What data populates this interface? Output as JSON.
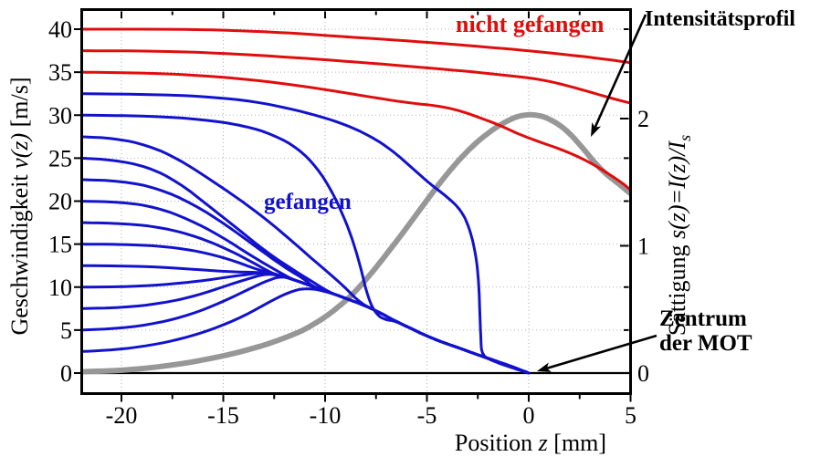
{
  "chart_data": {
    "type": "line",
    "title": "",
    "xlabel": "Position z [mm]",
    "ylabel_left": "Geschwindigkeit v(z) [m/s]",
    "ylabel_right": "Sättigung s(z)=I(z)/I_s",
    "xlim": [
      -22,
      5
    ],
    "ylim_left": [
      -2.3,
      42.1
    ],
    "ylim_right": [
      -0.16,
      2.85
    ],
    "grid": true,
    "colors": {
      "red": "#e00d0d",
      "blue": "#1212cd",
      "gray": "#979797",
      "grid": "#b3b3b3",
      "axis": "#000000"
    },
    "axes": {
      "x": {
        "label": {
          "prefix": "Position ",
          "variable": "z",
          "suffix": " [mm]"
        },
        "tick_values": [
          -20,
          -15,
          -10,
          -5,
          0,
          5
        ],
        "tick_labels": [
          "-20",
          "-15",
          "-10",
          "-5",
          "0",
          "5"
        ],
        "minor_tick_values": [
          -17.5,
          -12.5,
          -7.5,
          -2.5,
          2.5
        ]
      },
      "y_left": {
        "label": {
          "prefix": "Geschwindigkeit ",
          "variable": "v(z)",
          "suffix": " [m/s]"
        },
        "tick_values": [
          0,
          5,
          10,
          15,
          20,
          25,
          30,
          35,
          40
        ],
        "tick_labels": [
          "0",
          "5",
          "10",
          "15",
          "20",
          "25",
          "30",
          "35",
          "40"
        ]
      },
      "y_right": {
        "label": {
          "prefix": "Sättigung ",
          "variable": "s(z)=I(z)/I",
          "subscript": "s"
        },
        "tick_values": [
          0,
          1,
          2
        ],
        "tick_labels": [
          "0",
          "1",
          "2"
        ],
        "minor_tick_values_velocity_mirror": [
          5,
          10,
          20,
          25,
          35,
          40
        ]
      },
      "gridlines": {
        "x_values": [
          -20,
          -15,
          -10,
          -5,
          0
        ],
        "y_left_values": [
          5,
          10,
          15,
          20,
          25,
          30,
          35,
          40
        ]
      }
    },
    "annotations": {
      "nicht_gefangen": {
        "text": "nicht gefangen",
        "color": "#e00d0d"
      },
      "gefangen": {
        "text": "gefangen",
        "color": "#1212cd"
      },
      "intensitaetsprofil": {
        "text": "Intensitätsprofil",
        "color": "#000000"
      },
      "zentrum_der_mot": {
        "line1": "Zentrum",
        "line2": "der MOT",
        "color": "#000000"
      }
    },
    "capture_path_tail": [
      [
        -13,
        11.7
      ],
      [
        -12.2,
        11.35
      ],
      [
        -11.4,
        10.75
      ],
      [
        -10.6,
        10.05
      ],
      [
        -9.8,
        9.4
      ],
      [
        -9,
        8.7
      ],
      [
        -8.2,
        8.0
      ],
      [
        -7.4,
        7.15
      ],
      [
        -6.6,
        6.1
      ],
      [
        -5.8,
        5.2
      ],
      [
        -5,
        4.3
      ],
      [
        -4.2,
        3.55
      ],
      [
        -3.4,
        2.9
      ],
      [
        -2.6,
        2.2
      ],
      [
        -1.8,
        1.55
      ],
      [
        -1,
        0.9
      ],
      [
        -0.5,
        0.45
      ],
      [
        0,
        0
      ]
    ],
    "series": [
      {
        "name": "intensitaetsprofil",
        "label": "Intensitätsprofil",
        "axis": "right",
        "color_key": "gray",
        "width": 6,
        "points": [
          [
            -22,
            0.01
          ],
          [
            -20,
            0.02
          ],
          [
            -18,
            0.05
          ],
          [
            -16,
            0.1
          ],
          [
            -14,
            0.17
          ],
          [
            -12,
            0.27
          ],
          [
            -10.5,
            0.38
          ],
          [
            -9,
            0.56
          ],
          [
            -8,
            0.73
          ],
          [
            -7,
            0.93
          ],
          [
            -6,
            1.14
          ],
          [
            -5,
            1.36
          ],
          [
            -4,
            1.57
          ],
          [
            -3,
            1.75
          ],
          [
            -2,
            1.89
          ],
          [
            -1,
            1.99
          ],
          [
            -0.3,
            2.03
          ],
          [
            0.4,
            2.03
          ],
          [
            1,
            2.0
          ],
          [
            1.8,
            1.92
          ],
          [
            2.6,
            1.78
          ],
          [
            3.3,
            1.64
          ],
          [
            3.9,
            1.55
          ],
          [
            4.4,
            1.49
          ],
          [
            5,
            1.41
          ]
        ]
      },
      {
        "name": "gefangen_v0_2p5",
        "label": "gefangen",
        "axis": "left",
        "color_key": "blue",
        "width": 3,
        "v0": 2.5,
        "merge_z": -10.6,
        "points": [
          [
            -22,
            2.5
          ],
          [
            -20.3,
            2.7
          ],
          [
            -18.6,
            3.2
          ],
          [
            -17,
            4.0
          ],
          [
            -15.5,
            5.1
          ],
          [
            -14,
            6.6
          ],
          [
            -12.8,
            8.2
          ],
          [
            -11.8,
            9.4
          ],
          [
            -10.9,
            9.95
          ]
        ]
      },
      {
        "name": "gefangen_v0_5",
        "label": "gefangen",
        "axis": "left",
        "color_key": "blue",
        "width": 3,
        "v0": 5,
        "merge_z": -12,
        "points": [
          [
            -22,
            5
          ],
          [
            -20,
            5.2
          ],
          [
            -18.2,
            5.8
          ],
          [
            -16.6,
            6.8
          ],
          [
            -15.1,
            8.2
          ],
          [
            -13.8,
            9.7
          ],
          [
            -12.8,
            10.8
          ],
          [
            -12.1,
            11.3
          ]
        ]
      },
      {
        "name": "gefangen_v0_7p5",
        "label": "gefangen",
        "axis": "left",
        "color_key": "blue",
        "width": 3,
        "v0": 7.5,
        "merge_z": -12.8,
        "points": [
          [
            -22,
            7.5
          ],
          [
            -20,
            7.6
          ],
          [
            -18,
            8.1
          ],
          [
            -16.3,
            9.0
          ],
          [
            -14.8,
            10.2
          ],
          [
            -13.6,
            11.1
          ],
          [
            -12.9,
            11.55
          ]
        ]
      },
      {
        "name": "gefangen_v0_10",
        "label": "gefangen",
        "axis": "left",
        "color_key": "blue",
        "width": 3,
        "v0": 10,
        "merge_z": -13.1,
        "points": [
          [
            -22,
            10
          ],
          [
            -19.5,
            10.05
          ],
          [
            -17.5,
            10.35
          ],
          [
            -15.8,
            10.8
          ],
          [
            -14.4,
            11.3
          ],
          [
            -13.2,
            11.65
          ]
        ]
      },
      {
        "name": "gefangen_v0_12p5",
        "label": "gefangen",
        "axis": "left",
        "color_key": "blue",
        "width": 3,
        "v0": 12.5,
        "merge_z": -13.1,
        "points": [
          [
            -22,
            12.5
          ],
          [
            -19.5,
            12.45
          ],
          [
            -17.5,
            12.25
          ],
          [
            -15.8,
            11.95
          ],
          [
            -14.4,
            11.75
          ]
        ]
      },
      {
        "name": "gefangen_v0_15",
        "label": "gefangen",
        "axis": "left",
        "color_key": "blue",
        "width": 3,
        "v0": 15,
        "merge_z": -12.9,
        "points": [
          [
            -22,
            15
          ],
          [
            -19.3,
            14.95
          ],
          [
            -17.3,
            14.6
          ],
          [
            -15.7,
            13.9
          ],
          [
            -14.4,
            13.0
          ],
          [
            -13.3,
            12.0
          ]
        ]
      },
      {
        "name": "gefangen_v0_17p5",
        "label": "gefangen",
        "axis": "left",
        "color_key": "blue",
        "width": 3,
        "v0": 17.5,
        "merge_z": -12.4,
        "points": [
          [
            -22,
            17.5
          ],
          [
            -19.8,
            17.4
          ],
          [
            -17.9,
            16.9
          ],
          [
            -16.2,
            15.8
          ],
          [
            -14.7,
            14.3
          ],
          [
            -13.5,
            12.8
          ],
          [
            -12.6,
            11.6
          ]
        ]
      },
      {
        "name": "gefangen_v0_20",
        "label": "gefangen",
        "axis": "left",
        "color_key": "blue",
        "width": 3,
        "v0": 20,
        "merge_z": -11.5,
        "points": [
          [
            -22,
            20
          ],
          [
            -20,
            19.9
          ],
          [
            -18.3,
            19.3
          ],
          [
            -16.7,
            17.9
          ],
          [
            -15.1,
            15.9
          ],
          [
            -13.6,
            13.6
          ],
          [
            -12.3,
            11.8
          ],
          [
            -11.6,
            10.9
          ]
        ]
      },
      {
        "name": "gefangen_v0_22p5",
        "label": "gefangen",
        "axis": "left",
        "color_key": "blue",
        "width": 3,
        "v0": 22.5,
        "merge_z": -10.8,
        "points": [
          [
            -22,
            22.5
          ],
          [
            -20,
            22.35
          ],
          [
            -18.2,
            21.5
          ],
          [
            -16.5,
            19.7
          ],
          [
            -14.9,
            17.3
          ],
          [
            -13.4,
            14.7
          ],
          [
            -12,
            12.3
          ],
          [
            -11,
            10.9
          ]
        ]
      },
      {
        "name": "gefangen_v0_25",
        "label": "gefangen",
        "axis": "left",
        "color_key": "blue",
        "width": 3,
        "v0": 25,
        "merge_z": -10.2,
        "points": [
          [
            -22,
            25
          ],
          [
            -20.4,
            24.8
          ],
          [
            -18.7,
            24.0
          ],
          [
            -17.2,
            22.2
          ],
          [
            -15.8,
            19.6
          ],
          [
            -14.3,
            16.8
          ],
          [
            -12.9,
            14.1
          ],
          [
            -11.5,
            11.9
          ],
          [
            -10.4,
            10.3
          ]
        ]
      },
      {
        "name": "gefangen_v0_27p5",
        "label": "gefangen",
        "axis": "left",
        "color_key": "blue",
        "width": 3,
        "v0": 27.5,
        "merge_z": -8.9,
        "points": [
          [
            -22,
            27.5
          ],
          [
            -20.3,
            27.3
          ],
          [
            -18.7,
            26.5
          ],
          [
            -17.2,
            24.9
          ],
          [
            -15.7,
            22.6
          ],
          [
            -14.2,
            20.2
          ],
          [
            -12.9,
            17.9
          ],
          [
            -11.7,
            15.5
          ],
          [
            -10.5,
            13.0
          ],
          [
            -9.6,
            11.2
          ],
          [
            -9,
            9.9
          ]
        ]
      },
      {
        "name": "gefangen_v0_30",
        "label": "gefangen",
        "axis": "left",
        "color_key": "blue",
        "width": 3,
        "v0": 30,
        "merge_z": -6.7,
        "points": [
          [
            -22,
            30
          ],
          [
            -18.5,
            29.9
          ],
          [
            -16,
            29.5
          ],
          [
            -14,
            28.8
          ],
          [
            -12.5,
            27.7
          ],
          [
            -11.3,
            26.1
          ],
          [
            -10.4,
            23.9
          ],
          [
            -9.7,
            21.3
          ],
          [
            -9.1,
            18.3
          ],
          [
            -8.6,
            15.2
          ],
          [
            -8.2,
            11.8
          ],
          [
            -7.9,
            8.8
          ],
          [
            -7.5,
            6.8
          ],
          [
            -7,
            6.15
          ]
        ]
      },
      {
        "name": "gefangen_v0_32p5",
        "label": "gefangen",
        "axis": "left",
        "color_key": "blue",
        "width": 3,
        "v0": 32.5,
        "merge_z": -0.2,
        "points": [
          [
            -22,
            32.5
          ],
          [
            -18,
            32.4
          ],
          [
            -15.5,
            32.1
          ],
          [
            -13.5,
            31.6
          ],
          [
            -11.8,
            30.8
          ],
          [
            -10.3,
            29.9
          ],
          [
            -9,
            28.9
          ],
          [
            -7.8,
            27.6
          ],
          [
            -6.7,
            25.9
          ],
          [
            -5.7,
            23.8
          ],
          [
            -4.8,
            21.9
          ],
          [
            -4,
            20.5
          ],
          [
            -3.3,
            18.9
          ],
          [
            -2.9,
            16.8
          ],
          [
            -2.6,
            13.9
          ],
          [
            -2.45,
            10.5
          ],
          [
            -2.4,
            7.0
          ],
          [
            -2.35,
            3.8
          ],
          [
            -2.3,
            2.0
          ],
          [
            -1.7,
            1.35
          ],
          [
            -1,
            0.75
          ],
          [
            -0.4,
            0.3
          ]
        ]
      },
      {
        "name": "nicht_gefangen_v0_35",
        "label": "nicht gefangen",
        "axis": "left",
        "color_key": "red",
        "width": 3,
        "v0": 35,
        "points": [
          [
            -22,
            35
          ],
          [
            -18.5,
            34.9
          ],
          [
            -16,
            34.6
          ],
          [
            -13.5,
            34.1
          ],
          [
            -11.5,
            33.5
          ],
          [
            -9.5,
            32.8
          ],
          [
            -7.5,
            32.0
          ],
          [
            -5.8,
            31.4
          ],
          [
            -4.5,
            31.1
          ],
          [
            -3.5,
            30.6
          ],
          [
            -2.5,
            29.8
          ],
          [
            -1.5,
            28.9
          ],
          [
            -0.5,
            27.8
          ],
          [
            0.5,
            26.9
          ],
          [
            1.5,
            26.1
          ],
          [
            2.5,
            25.1
          ],
          [
            3.3,
            24.1
          ],
          [
            4.1,
            22.9
          ],
          [
            4.6,
            22.1
          ],
          [
            5,
            21.3
          ]
        ]
      },
      {
        "name": "nicht_gefangen_v0_37p5",
        "label": "nicht gefangen",
        "axis": "left",
        "color_key": "red",
        "width": 3,
        "v0": 37.5,
        "points": [
          [
            -22,
            37.5
          ],
          [
            -18,
            37.45
          ],
          [
            -15,
            37.2
          ],
          [
            -12.5,
            36.85
          ],
          [
            -10,
            36.45
          ],
          [
            -7.5,
            36.0
          ],
          [
            -5,
            35.5
          ],
          [
            -3,
            35.1
          ],
          [
            -1,
            34.6
          ],
          [
            0.5,
            34.2
          ],
          [
            1.8,
            33.5
          ],
          [
            3,
            32.7
          ],
          [
            4,
            32.0
          ],
          [
            5,
            31.4
          ]
        ]
      },
      {
        "name": "nicht_gefangen_v0_40",
        "label": "nicht gefangen",
        "axis": "left",
        "color_key": "red",
        "width": 3,
        "v0": 40,
        "points": [
          [
            -22,
            40
          ],
          [
            -17,
            40
          ],
          [
            -14.5,
            39.85
          ],
          [
            -12,
            39.6
          ],
          [
            -9.5,
            39.2
          ],
          [
            -7,
            38.8
          ],
          [
            -4.5,
            38.4
          ],
          [
            -2,
            37.9
          ],
          [
            0,
            37.5
          ],
          [
            2,
            37.0
          ],
          [
            3.5,
            36.6
          ],
          [
            5,
            36.1
          ]
        ]
      }
    ]
  }
}
